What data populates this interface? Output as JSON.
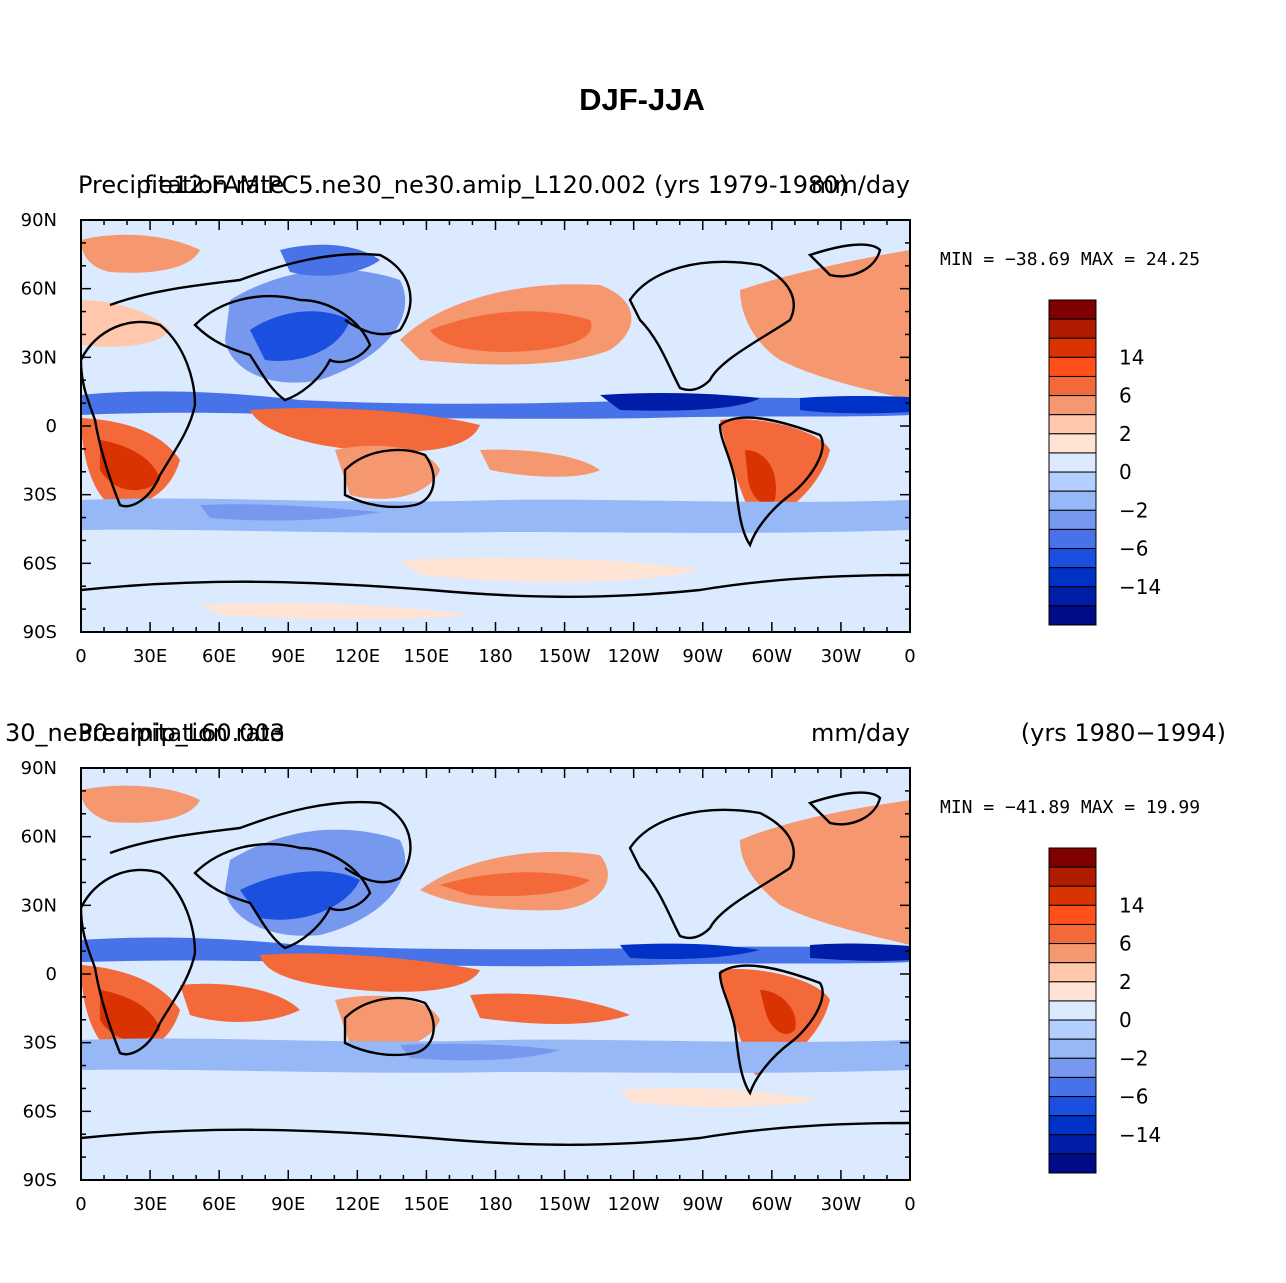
{
  "figure": {
    "title": "DJF-JJA"
  },
  "colorbar": {
    "colors": [
      "#7f0000",
      "#b01c00",
      "#d83300",
      "#ff4f1a",
      "#f4693a",
      "#f59870",
      "#ffc8ad",
      "#ffe4d6",
      "#dceaff",
      "#b3cfff",
      "#96b8f7",
      "#7698ef",
      "#4872e8",
      "#1a4fe0",
      "#0032c8",
      "#001da8",
      "#000b87"
    ],
    "labels": [
      {
        "text": "14",
        "boundary": 3
      },
      {
        "text": "6",
        "boundary": 5
      },
      {
        "text": "2",
        "boundary": 7
      },
      {
        "text": "0",
        "boundary": 9
      },
      {
        "text": "−2",
        "boundary": 11
      },
      {
        "text": "−6",
        "boundary": 13
      },
      {
        "text": "−14",
        "boundary": 15
      }
    ]
  },
  "axes": {
    "x_ticks": [
      "0",
      "30E",
      "60E",
      "90E",
      "120E",
      "150E",
      "180",
      "150W",
      "120W",
      "90W",
      "60W",
      "30W",
      "0"
    ],
    "y_ticks": [
      "90N",
      "60N",
      "30N",
      "0",
      "30S",
      "60S",
      "90S"
    ]
  },
  "panels": [
    {
      "id": "model",
      "left_title": "Precipitation rate",
      "center_title": "f.e12.FAMIPC5.ne30_ne30.amip_L120.002 (yrs 1979-1980)",
      "right_title": "mm/day",
      "extra_title": "",
      "stats": "MIN = −38.69 MAX =  24.25"
    },
    {
      "id": "obs",
      "left_title": "Precipitation rate",
      "center_title": "30_ne30.amip_L60.003",
      "right_title": "mm/day",
      "extra_title": "(yrs 1980−1994)",
      "stats": "MIN = −41.89 MAX =  19.99"
    }
  ]
}
